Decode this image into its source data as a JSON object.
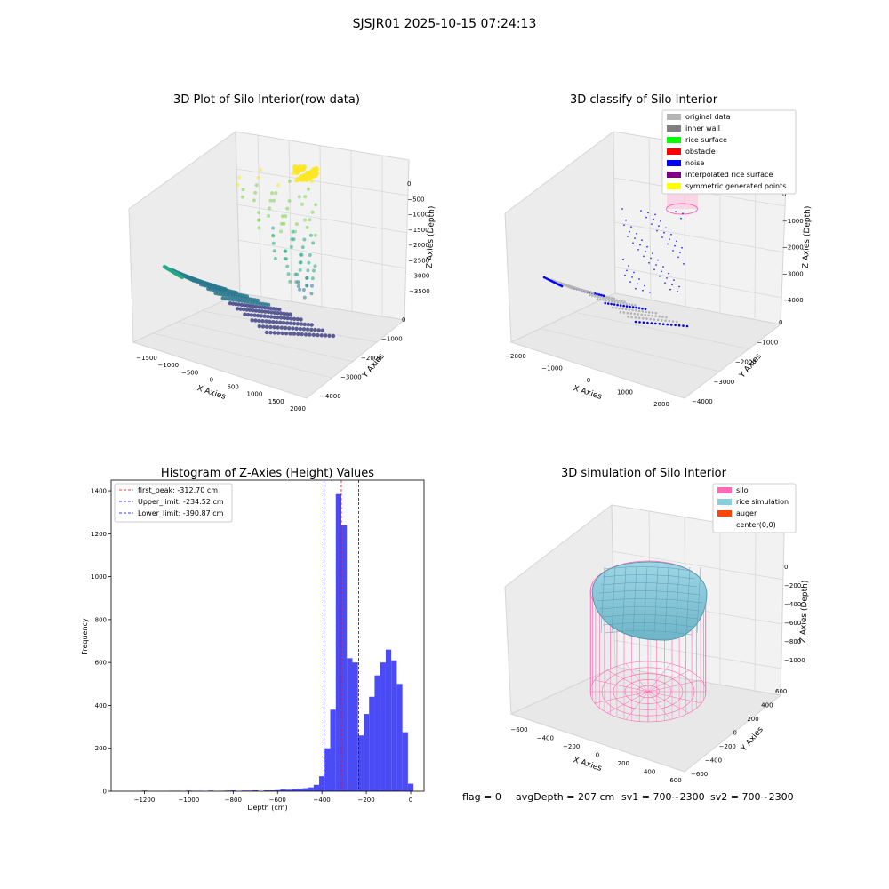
{
  "suptitle": "SJSJR01 2025-10-15 07:24:13",
  "footer": {
    "flag": "flag = 0",
    "avg_depth": "avgDepth = 207 cm",
    "sv1": "sv1 = 700~2300",
    "sv2": "sv2 = 700~2300"
  },
  "colors": {
    "hist_bar": "#4b4bf5",
    "first_peak_line": "#ff0000",
    "limit_line": "#0000ff",
    "silo": "#ff69b4",
    "rice_simulation": "#87cedf",
    "auger": "#ff4500",
    "original_data": "#b4b4b4",
    "inner_wall": "#808080",
    "rice_surface": "#00ff00",
    "obstacle": "#ff0000",
    "noise": "#0000ff",
    "interpolated_rice_surface": "#800080",
    "symmetric_generated_points": "#ffff00"
  },
  "panels": {
    "raw": {
      "title": "3D Plot of Silo Interior(row data)",
      "xlabel": "X Axies",
      "ylabel": "Y Axies",
      "zlabel": "Z Axies (Depth)",
      "xticks": [
        "−1500",
        "−1000",
        "−500",
        "0",
        "500",
        "1000",
        "1500",
        "2000"
      ],
      "yticks": [
        "0",
        "−1000",
        "−2000",
        "−3000",
        "−4000"
      ],
      "zticks": [
        "0",
        "−500",
        "−1000",
        "−1500",
        "−2000",
        "−2500",
        "−3000",
        "−3500"
      ]
    },
    "classify": {
      "title": "3D classify of Silo Interior",
      "xlabel": "X Axies",
      "ylabel": "Y Axies",
      "zlabel": "Z Axies (Depth)",
      "xticks": [
        "−2000",
        "−1000",
        "0",
        "1000",
        "2000"
      ],
      "yticks": [
        "0",
        "−1000",
        "−2000",
        "−3000",
        "−4000"
      ],
      "zticks": [
        "0",
        "−1000",
        "−2000",
        "−3000",
        "−4000"
      ],
      "legend": [
        "original data",
        "inner wall",
        "rice surface",
        "obstacle",
        "noise",
        "interpolated rice surface",
        "symmetric generated points"
      ]
    },
    "simulation": {
      "title": "3D simulation of Silo Interior",
      "xlabel": "X Axies",
      "ylabel": "Y Axies",
      "zlabel": "Z Axies (Depth)",
      "xticks": [
        "−600",
        "−400",
        "−200",
        "0",
        "200",
        "400",
        "600"
      ],
      "yticks": [
        "600",
        "400",
        "200",
        "0",
        "−200",
        "−400",
        "−600"
      ],
      "zticks": [
        "0",
        "−200",
        "−400",
        "−600",
        "−800",
        "−1000"
      ],
      "legend": [
        "silo",
        "rice simulation",
        "auger",
        "center(0,0)"
      ]
    }
  },
  "chart_data": {
    "type": "bar",
    "title": "Histogram of Z-Axies (Height) Values",
    "xlabel": "Depth (cm)",
    "ylabel": "Frequency",
    "xlim": [
      -1350,
      60
    ],
    "ylim": [
      0,
      1450
    ],
    "xticks": [
      -1200,
      -1000,
      -800,
      -600,
      -400,
      -200,
      0
    ],
    "xtick_labels": [
      "−1200",
      "−1000",
      "−800",
      "−600",
      "−400",
      "−200",
      "0"
    ],
    "yticks": [
      0,
      200,
      400,
      600,
      800,
      1000,
      1200,
      1400
    ],
    "bin_width": 25,
    "bins": [
      [
        -1200,
        3
      ],
      [
        -1075,
        2
      ],
      [
        -1050,
        2
      ],
      [
        -1000,
        3
      ],
      [
        -975,
        2
      ],
      [
        -950,
        2
      ],
      [
        -900,
        3
      ],
      [
        -850,
        2
      ],
      [
        -825,
        3
      ],
      [
        -800,
        4
      ],
      [
        -750,
        3
      ],
      [
        -725,
        3
      ],
      [
        -700,
        4
      ],
      [
        -650,
        4
      ],
      [
        -625,
        4
      ],
      [
        -600,
        5
      ],
      [
        -575,
        8
      ],
      [
        -550,
        7
      ],
      [
        -525,
        10
      ],
      [
        -500,
        12
      ],
      [
        -475,
        14
      ],
      [
        -450,
        18
      ],
      [
        -425,
        30
      ],
      [
        -400,
        70
      ],
      [
        -375,
        200
      ],
      [
        -350,
        380
      ],
      [
        -325,
        1385
      ],
      [
        -300,
        1240
      ],
      [
        -275,
        620
      ],
      [
        -250,
        600
      ],
      [
        -225,
        260
      ],
      [
        -200,
        360
      ],
      [
        -175,
        440
      ],
      [
        -150,
        540
      ],
      [
        -125,
        600
      ],
      [
        -100,
        660
      ],
      [
        -75,
        610
      ],
      [
        -50,
        500
      ],
      [
        -25,
        275
      ],
      [
        0,
        35
      ]
    ],
    "lines": [
      {
        "label": "first_peak: -312.70 cm",
        "x": -312.7,
        "style": "red-dashed"
      },
      {
        "label": "Upper_limit: -234.52 cm",
        "x": -234.52,
        "style": "blue-dashed"
      },
      {
        "label": "Lower_limit: -390.87 cm",
        "x": -390.87,
        "style": "blue-dashed"
      }
    ],
    "grid": false,
    "legend_position": "upper left"
  }
}
